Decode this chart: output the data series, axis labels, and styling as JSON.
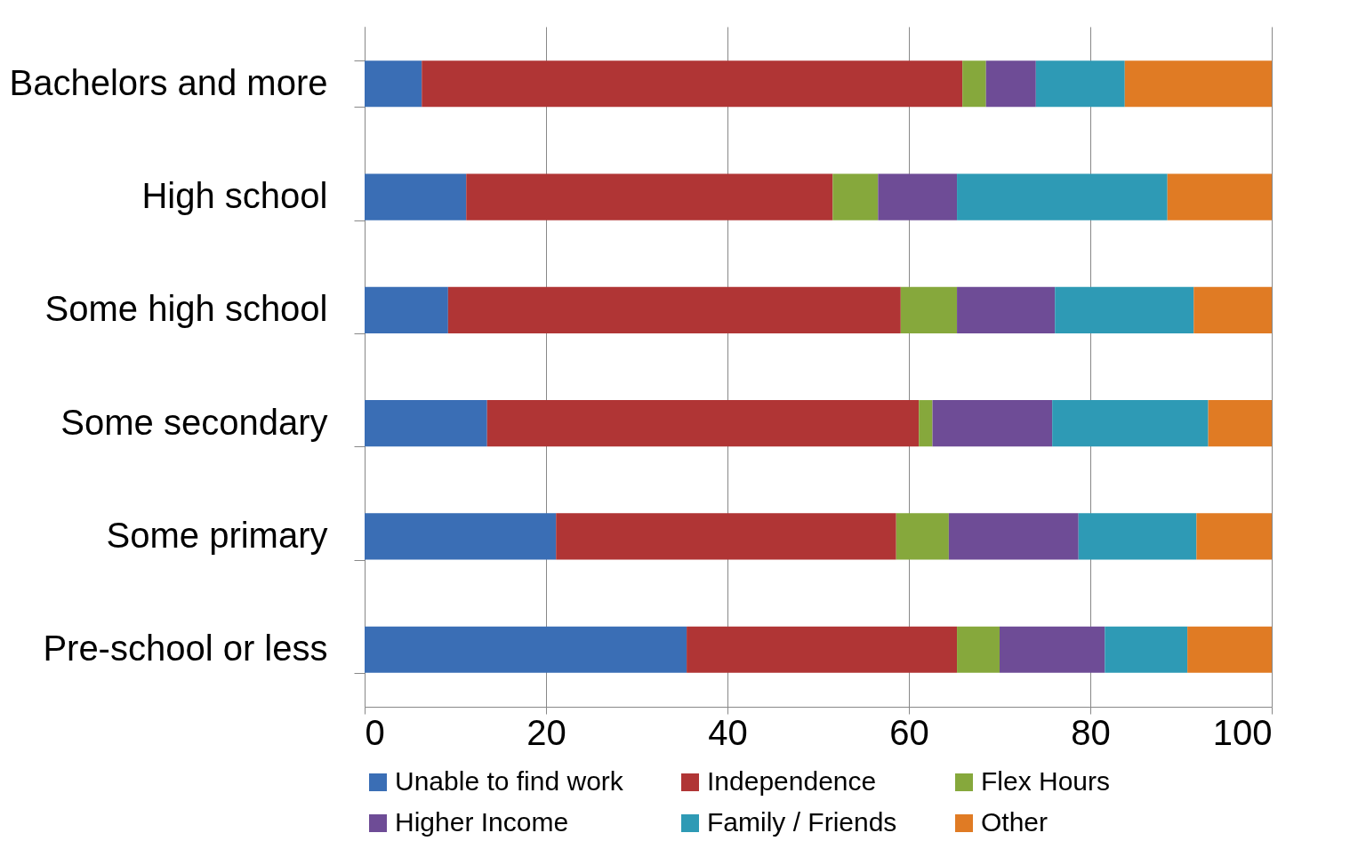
{
  "chart_data": {
    "type": "bar",
    "orientation": "horizontal",
    "stacked": true,
    "categories": [
      "Bachelors and more",
      "High school",
      "Some high school",
      "Some secondary",
      "Some primary",
      "Pre-school or less"
    ],
    "series": [
      {
        "name": "Unable to find work",
        "color": "#3a6eb5",
        "values": [
          6.3,
          11.2,
          9.2,
          13.5,
          21.1,
          35.5
        ]
      },
      {
        "name": "Independence",
        "color": "#b03535",
        "values": [
          59.6,
          40.4,
          49.9,
          47.6,
          37.5,
          29.8
        ]
      },
      {
        "name": "Flex Hours",
        "color": "#86a83c",
        "values": [
          2.6,
          5.0,
          6.2,
          1.5,
          5.8,
          4.7
        ]
      },
      {
        "name": "Higher Income",
        "color": "#6e4c96",
        "values": [
          5.5,
          8.7,
          10.8,
          13.2,
          14.3,
          11.6
        ]
      },
      {
        "name": "Family / Friends",
        "color": "#2e9ab5",
        "values": [
          9.8,
          23.2,
          15.3,
          17.2,
          13.0,
          9.1
        ]
      },
      {
        "name": "Other",
        "color": "#e07b24",
        "values": [
          16.2,
          11.5,
          8.6,
          7.0,
          8.3,
          9.3
        ]
      }
    ],
    "xlim": [
      0,
      100
    ],
    "xticks": [
      0,
      20,
      40,
      60,
      80,
      100
    ],
    "grid": "x",
    "legend": "bottom"
  }
}
